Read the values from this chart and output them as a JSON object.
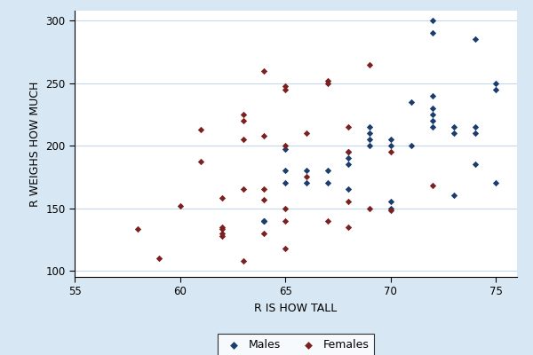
{
  "males_x": [
    64,
    64,
    64,
    65,
    65,
    65,
    66,
    66,
    67,
    67,
    68,
    68,
    68,
    68,
    69,
    69,
    69,
    69,
    70,
    70,
    70,
    70,
    71,
    71,
    72,
    72,
    72,
    72,
    72,
    72,
    72,
    73,
    73,
    73,
    74,
    74,
    74,
    74,
    75,
    75,
    75
  ],
  "males_y": [
    140,
    140,
    140,
    197,
    180,
    170,
    180,
    170,
    180,
    170,
    195,
    190,
    185,
    165,
    215,
    210,
    205,
    200,
    205,
    200,
    155,
    150,
    235,
    200,
    300,
    290,
    240,
    230,
    225,
    220,
    215,
    215,
    210,
    160,
    285,
    215,
    210,
    185,
    250,
    245,
    170
  ],
  "females_x": [
    58,
    59,
    60,
    61,
    61,
    62,
    62,
    62,
    62,
    62,
    63,
    63,
    63,
    63,
    63,
    64,
    64,
    64,
    64,
    64,
    65,
    65,
    65,
    65,
    65,
    65,
    66,
    66,
    67,
    67,
    67,
    68,
    68,
    68,
    68,
    69,
    69,
    70,
    70,
    72
  ],
  "females_y": [
    133,
    110,
    152,
    213,
    187,
    158,
    135,
    133,
    130,
    128,
    225,
    220,
    205,
    165,
    108,
    260,
    208,
    165,
    157,
    130,
    248,
    245,
    200,
    150,
    140,
    118,
    210,
    175,
    252,
    250,
    140,
    215,
    195,
    155,
    135,
    265,
    150,
    195,
    148,
    168
  ],
  "male_color": "#1b3d6e",
  "female_color": "#7b2020",
  "background_color": "#d7e8f4",
  "plot_bg_color": "#ffffff",
  "xlabel": "R IS HOW TALL",
  "ylabel": "R WEIGHS HOW MUCH",
  "xlim": [
    55,
    76
  ],
  "ylim": [
    95,
    308
  ],
  "xticks": [
    55,
    60,
    65,
    70,
    75
  ],
  "yticks": [
    100,
    150,
    200,
    250,
    300
  ],
  "marker": "D",
  "marker_size": 14,
  "legend_labels": [
    "Males",
    "Females"
  ],
  "grid_color": "#c5d9eb",
  "grid_linewidth": 0.8,
  "axis_linewidth": 0.8,
  "tick_labelsize": 8.5,
  "label_fontsize": 9
}
